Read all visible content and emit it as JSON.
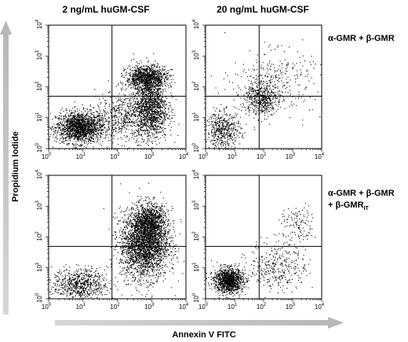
{
  "column_titles": [
    "2 ng/mL huGM-CSF",
    "20 ng/mL huGM-CSF"
  ],
  "row_labels": [
    {
      "parts": [
        {
          "t": "α-GMR + β-GMR"
        }
      ]
    },
    {
      "parts": [
        {
          "t": "α-GMR + β-GMR"
        },
        {
          "t": "+ β-GMR",
          "line": 2
        },
        {
          "t": "IT",
          "sub": true,
          "line": 2
        }
      ]
    }
  ],
  "x_axis_label": "Annexin V FITC",
  "y_axis_label": "Propidium Iodide",
  "colors": {
    "ink": "#000000",
    "arrow": "#c9c9c9",
    "background": "#ffffff"
  },
  "chart_data": [
    {
      "type": "scatter",
      "title": "",
      "column": "2 ng/mL huGM-CSF",
      "row": "α-GMR + β-GMR",
      "xscale": "log",
      "yscale": "log",
      "xlim": [
        1,
        10000
      ],
      "ylim": [
        1,
        10000
      ],
      "xticks": [
        "10^0",
        "10^1",
        "10^2",
        "10^3",
        "10^4"
      ],
      "yticks": [
        "10^0",
        "10^1",
        "10^2",
        "10^3",
        "10^4"
      ],
      "quadrant_gate": {
        "x": 70,
        "y": 50
      },
      "density_clusters": [
        {
          "x": 8,
          "y": 5,
          "spread_decades": [
            0.35,
            0.25
          ],
          "points": 1700
        },
        {
          "x": 900,
          "y": 20,
          "spread_decades": [
            0.25,
            0.5
          ],
          "points": 1400
        },
        {
          "x": 700,
          "y": 200,
          "spread_decades": [
            0.3,
            0.2
          ],
          "points": 1100
        },
        {
          "x": 150,
          "y": 12,
          "spread_decades": [
            0.4,
            0.4
          ],
          "points": 500
        }
      ]
    },
    {
      "type": "scatter",
      "title": "",
      "column": "20 ng/mL huGM-CSF",
      "row": "α-GMR + β-GMR",
      "xscale": "log",
      "yscale": "log",
      "xlim": [
        1,
        10000
      ],
      "ylim": [
        1,
        10000
      ],
      "xticks": [
        "10^0",
        "10^1",
        "10^2",
        "10^3",
        "10^4"
      ],
      "yticks": [
        "10^0",
        "10^1",
        "10^2",
        "10^3",
        "10^4"
      ],
      "quadrant_gate": {
        "x": 70,
        "y": 50
      },
      "density_clusters": [
        {
          "x": 4,
          "y": 4,
          "spread_decades": [
            0.3,
            0.3
          ],
          "points": 500
        },
        {
          "x": 80,
          "y": 40,
          "spread_decades": [
            0.3,
            0.25
          ],
          "points": 450
        },
        {
          "x": 200,
          "y": 150,
          "spread_decades": [
            0.7,
            0.5
          ],
          "points": 350
        }
      ]
    },
    {
      "type": "scatter",
      "title": "",
      "column": "2 ng/mL huGM-CSF",
      "row": "α-GMR + β-GMR + β-GMR_IT",
      "xscale": "log",
      "yscale": "log",
      "xlim": [
        1,
        10000
      ],
      "ylim": [
        1,
        10000
      ],
      "xticks": [
        "10^0",
        "10^1",
        "10^2",
        "10^3",
        "10^4"
      ],
      "yticks": [
        "10^0",
        "10^1",
        "10^2",
        "10^3",
        "10^4"
      ],
      "quadrant_gate": {
        "x": 70,
        "y": 50
      },
      "density_clusters": [
        {
          "x": 8,
          "y": 3,
          "spread_decades": [
            0.4,
            0.25
          ],
          "points": 700
        },
        {
          "x": 600,
          "y": 60,
          "spread_decades": [
            0.35,
            0.55
          ],
          "points": 2600
        },
        {
          "x": 900,
          "y": 300,
          "spread_decades": [
            0.25,
            0.3
          ],
          "points": 900
        }
      ]
    },
    {
      "type": "scatter",
      "title": "",
      "column": "20 ng/mL huGM-CSF",
      "row": "α-GMR + β-GMR + β-GMR_IT",
      "xscale": "log",
      "yscale": "log",
      "xlim": [
        1,
        10000
      ],
      "ylim": [
        1,
        10000
      ],
      "xticks": [
        "10^0",
        "10^1",
        "10^2",
        "10^3",
        "10^4"
      ],
      "yticks": [
        "10^0",
        "10^1",
        "10^2",
        "10^3",
        "10^4"
      ],
      "quadrant_gate": {
        "x": 70,
        "y": 50
      },
      "density_clusters": [
        {
          "x": 6,
          "y": 4,
          "spread_decades": [
            0.25,
            0.2
          ],
          "points": 1200
        },
        {
          "x": 300,
          "y": 12,
          "spread_decades": [
            0.5,
            0.4
          ],
          "points": 350
        },
        {
          "x": 1500,
          "y": 250,
          "spread_decades": [
            0.3,
            0.3
          ],
          "points": 120
        }
      ]
    }
  ]
}
